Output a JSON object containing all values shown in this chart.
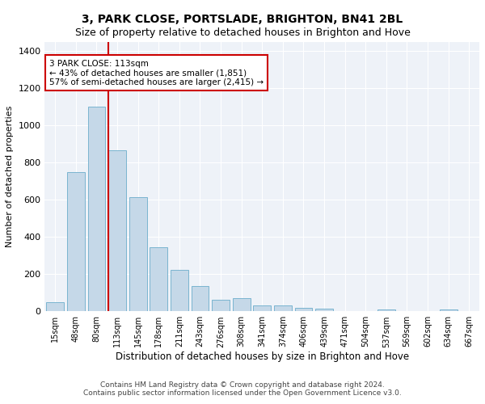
{
  "title1": "3, PARK CLOSE, PORTSLADE, BRIGHTON, BN41 2BL",
  "title2": "Size of property relative to detached houses in Brighton and Hove",
  "xlabel": "Distribution of detached houses by size in Brighton and Hove",
  "ylabel": "Number of detached properties",
  "categories": [
    "15sqm",
    "48sqm",
    "80sqm",
    "113sqm",
    "145sqm",
    "178sqm",
    "211sqm",
    "243sqm",
    "276sqm",
    "308sqm",
    "341sqm",
    "374sqm",
    "406sqm",
    "439sqm",
    "471sqm",
    "504sqm",
    "537sqm",
    "569sqm",
    "602sqm",
    "634sqm",
    "667sqm"
  ],
  "values": [
    50,
    750,
    1100,
    865,
    615,
    345,
    225,
    135,
    60,
    70,
    30,
    30,
    20,
    15,
    0,
    0,
    10,
    0,
    0,
    10,
    0
  ],
  "bar_color": "#c5d8e8",
  "bar_edge_color": "#7ab4d0",
  "vline_index": 3,
  "vline_color": "#cc0000",
  "annotation_text": "3 PARK CLOSE: 113sqm\n← 43% of detached houses are smaller (1,851)\n57% of semi-detached houses are larger (2,415) →",
  "annotation_box_color": "#cc0000",
  "ylim": [
    0,
    1450
  ],
  "yticks": [
    0,
    200,
    400,
    600,
    800,
    1000,
    1200,
    1400
  ],
  "footer1": "Contains HM Land Registry data © Crown copyright and database right 2024.",
  "footer2": "Contains public sector information licensed under the Open Government Licence v3.0.",
  "bg_color": "#eef2f8",
  "grid_color": "#ffffff",
  "title1_fontsize": 10,
  "title2_fontsize": 9,
  "xlabel_fontsize": 8.5,
  "ylabel_fontsize": 8,
  "tick_fontsize": 7,
  "annotation_fontsize": 7.5,
  "footer_fontsize": 6.5
}
